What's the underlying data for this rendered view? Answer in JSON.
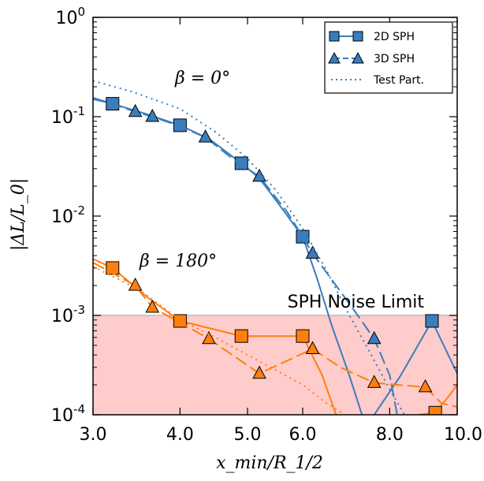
{
  "chart_data": {
    "type": "line",
    "xlabel": "x_min/R_1/2",
    "ylabel": "|ΔL/L_0|",
    "xscale": "log",
    "yscale": "log",
    "xlim": [
      3.0,
      10.0
    ],
    "ylim": [
      0.0001,
      1.0
    ],
    "x_ticks": [
      {
        "value": 3.0,
        "label": "3.0"
      },
      {
        "value": 4.0,
        "label": "4.0"
      },
      {
        "value": 5.0,
        "label": "5.0"
      },
      {
        "value": 6.0,
        "label": "6.0"
      },
      {
        "value": 8.0,
        "label": "8.0"
      },
      {
        "value": 10.0,
        "label": "10.0"
      }
    ],
    "y_ticks": [
      {
        "value": 1.0,
        "base": "10",
        "exp": "0"
      },
      {
        "value": 0.1,
        "base": "10",
        "exp": "-1"
      },
      {
        "value": 0.01,
        "base": "10",
        "exp": "-2"
      },
      {
        "value": 0.001,
        "base": "10",
        "exp": "-3"
      },
      {
        "value": 0.0001,
        "base": "10",
        "exp": "-4"
      }
    ],
    "noise_limit": {
      "label": "SPH Noise Limit",
      "value": 0.001,
      "color": "#ffcccc"
    },
    "annotations": [
      {
        "text": "β = 0°",
        "x": 4.0,
        "y": 0.3
      },
      {
        "text": "β = 180°",
        "x": 3.6,
        "y": 0.003
      }
    ],
    "legend": {
      "position": "top-right",
      "entries": [
        {
          "label": "2D SPH",
          "style": "solid",
          "marker": "square"
        },
        {
          "label": "3D SPH",
          "style": "dashed",
          "marker": "triangle"
        },
        {
          "label": "Test Part.",
          "style": "dotted",
          "marker": "none"
        }
      ]
    },
    "series": [
      {
        "group": "beta0",
        "style": "solid",
        "marker": "square",
        "color": "#3a7dbd",
        "line": [
          [
            3.0,
            0.155
          ],
          [
            3.2,
            0.135
          ],
          [
            3.6,
            0.105
          ],
          [
            4.0,
            0.082
          ],
          [
            4.4,
            0.06
          ],
          [
            4.9,
            0.034
          ],
          [
            5.2,
            0.024
          ],
          [
            5.6,
            0.012
          ],
          [
            6.0,
            0.0062
          ],
          [
            6.3,
            0.0023
          ],
          [
            6.6,
            0.0008
          ],
          [
            7.0,
            0.00025
          ],
          [
            7.3,
            0.0001
          ]
        ],
        "markers": [
          [
            3.2,
            0.135
          ],
          [
            4.0,
            0.082
          ],
          [
            4.9,
            0.034
          ],
          [
            6.0,
            0.0062
          ]
        ]
      },
      {
        "group": "beta0",
        "style": "solid",
        "marker": "square",
        "color": "#3a7dbd",
        "line": [
          [
            7.6,
            0.0001
          ],
          [
            8.3,
            0.00025
          ],
          [
            9.2,
            0.00088
          ],
          [
            10.0,
            0.00026
          ]
        ],
        "markers": [
          [
            9.2,
            0.00088
          ]
        ]
      },
      {
        "group": "beta0",
        "style": "dashed",
        "marker": "triangle",
        "color": "#3a7dbd",
        "line": [
          [
            3.0,
            0.15
          ],
          [
            3.2,
            0.135
          ],
          [
            3.45,
            0.112
          ],
          [
            3.65,
            0.1
          ],
          [
            4.0,
            0.08
          ],
          [
            4.35,
            0.062
          ],
          [
            4.8,
            0.036
          ],
          [
            5.2,
            0.025
          ],
          [
            5.7,
            0.011
          ],
          [
            6.0,
            0.0062
          ],
          [
            6.2,
            0.0042
          ],
          [
            6.7,
            0.002
          ],
          [
            7.2,
            0.001
          ],
          [
            7.6,
            0.00058
          ],
          [
            8.0,
            0.00025
          ],
          [
            8.2,
            0.0001
          ]
        ],
        "markers": [
          [
            3.45,
            0.112
          ],
          [
            3.65,
            0.1
          ],
          [
            4.35,
            0.062
          ],
          [
            5.2,
            0.025
          ],
          [
            6.2,
            0.0042
          ],
          [
            7.6,
            0.00058
          ]
        ]
      },
      {
        "group": "beta0",
        "style": "dotted",
        "marker": "none",
        "color": "#3a7dbd",
        "line": [
          [
            3.0,
            0.23
          ],
          [
            3.4,
            0.18
          ],
          [
            4.0,
            0.12
          ],
          [
            4.5,
            0.07
          ],
          [
            5.0,
            0.038
          ],
          [
            5.5,
            0.018
          ],
          [
            6.0,
            0.0075
          ],
          [
            6.5,
            0.0028
          ],
          [
            7.0,
            0.001
          ],
          [
            7.5,
            0.00042
          ],
          [
            8.0,
            0.00018
          ],
          [
            8.4,
            0.0001
          ]
        ],
        "markers": []
      },
      {
        "group": "beta180",
        "style": "solid",
        "marker": "square",
        "color": "#ff7f0e",
        "line": [
          [
            3.0,
            0.0037
          ],
          [
            3.2,
            0.003
          ],
          [
            3.6,
            0.0015
          ],
          [
            4.0,
            0.00088
          ],
          [
            4.9,
            0.00062
          ],
          [
            6.0,
            0.00062
          ],
          [
            6.4,
            0.00025
          ],
          [
            6.7,
            0.0001
          ]
        ],
        "markers": [
          [
            3.2,
            0.003
          ],
          [
            4.0,
            0.00088
          ],
          [
            4.9,
            0.00062
          ],
          [
            6.0,
            0.00062
          ]
        ]
      },
      {
        "group": "beta180",
        "style": "solid",
        "marker": "square",
        "color": "#ff7f0e",
        "line": [
          [
            8.8,
            0.0001
          ],
          [
            9.3,
            0.000105
          ],
          [
            9.7,
            0.00015
          ],
          [
            10.0,
            0.0002
          ]
        ],
        "markers": [
          [
            9.3,
            0.000105
          ]
        ]
      },
      {
        "group": "beta180",
        "style": "dashed",
        "marker": "triangle",
        "color": "#ff7f0e",
        "line": [
          [
            3.0,
            0.0034
          ],
          [
            3.45,
            0.002
          ],
          [
            3.65,
            0.0012
          ],
          [
            4.0,
            0.00085
          ],
          [
            4.4,
            0.00058
          ],
          [
            5.2,
            0.00026
          ],
          [
            6.2,
            0.00046
          ],
          [
            6.8,
            0.0003
          ],
          [
            7.6,
            0.00021
          ],
          [
            8.2,
            0.0002
          ],
          [
            9.0,
            0.00019
          ],
          [
            9.5,
            0.00013
          ],
          [
            10.0,
            0.00012
          ]
        ],
        "markers": [
          [
            3.45,
            0.002
          ],
          [
            3.65,
            0.0012
          ],
          [
            4.4,
            0.00058
          ],
          [
            5.2,
            0.00026
          ],
          [
            6.2,
            0.00046
          ],
          [
            7.6,
            0.00021
          ],
          [
            9.0,
            0.00019
          ]
        ]
      },
      {
        "group": "beta180",
        "style": "dotted",
        "marker": "none",
        "color": "#ff7f0e",
        "line": [
          [
            3.0,
            0.0031
          ],
          [
            3.5,
            0.0018
          ],
          [
            4.0,
            0.0009
          ],
          [
            4.5,
            0.0006
          ],
          [
            5.0,
            0.0004
          ],
          [
            5.5,
            0.00028
          ],
          [
            6.0,
            0.0002
          ],
          [
            6.5,
            0.00013
          ],
          [
            6.9,
            0.0001
          ]
        ],
        "markers": []
      }
    ]
  }
}
